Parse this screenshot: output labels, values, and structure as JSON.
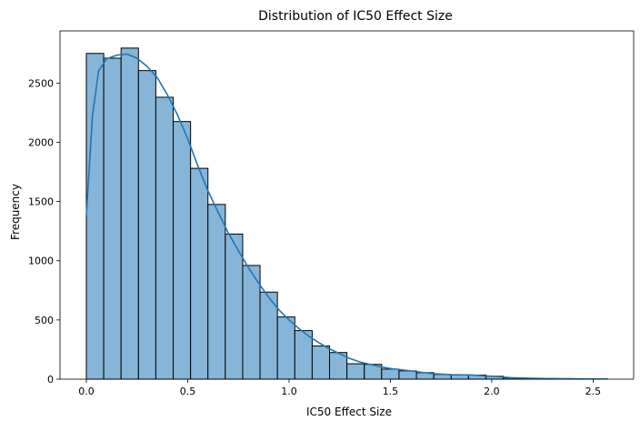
{
  "chart_data": {
    "type": "bar",
    "title": "Distribution of IC50 Effect Size",
    "xlabel": "IC50 Effect Size",
    "ylabel": "Frequency",
    "xlim": [
      -0.13,
      2.7
    ],
    "ylim": [
      0,
      2940
    ],
    "xticks": [
      0.0,
      0.5,
      1.0,
      1.5,
      2.0,
      2.5
    ],
    "xtick_labels": [
      "0.0",
      "0.5",
      "1.0",
      "1.5",
      "2.0",
      "2.5"
    ],
    "yticks": [
      0,
      500,
      1000,
      1500,
      2000,
      2500
    ],
    "ytick_labels": [
      "0",
      "500",
      "1000",
      "1500",
      "2000",
      "2500"
    ],
    "bin_edges": [
      0.0,
      0.0857,
      0.1714,
      0.2571,
      0.3428,
      0.4285,
      0.5142,
      0.5999,
      0.6856,
      0.7713,
      0.857,
      0.9427,
      1.0284,
      1.1141,
      1.1998,
      1.2855,
      1.3712,
      1.4569,
      1.5426,
      1.6283,
      1.714,
      1.7997,
      1.8854,
      1.9711,
      2.0568,
      2.1425,
      2.2282,
      2.3139,
      2.3996,
      2.4853,
      2.571
    ],
    "values": [
      2750,
      2710,
      2795,
      2605,
      2380,
      2175,
      1780,
      1475,
      1225,
      960,
      735,
      525,
      410,
      280,
      225,
      130,
      125,
      85,
      70,
      55,
      40,
      35,
      35,
      25,
      10,
      8,
      5,
      4,
      3,
      2
    ],
    "kde": {
      "x": [
        0.0,
        0.03,
        0.06,
        0.1,
        0.15,
        0.2,
        0.25,
        0.3,
        0.35,
        0.4,
        0.45,
        0.5,
        0.55,
        0.6,
        0.65,
        0.7,
        0.75,
        0.8,
        0.85,
        0.9,
        0.95,
        1.0,
        1.05,
        1.1,
        1.15,
        1.2,
        1.25,
        1.3,
        1.35,
        1.4,
        1.45,
        1.5,
        1.6,
        1.7,
        1.8,
        1.9,
        2.0,
        2.1,
        2.2,
        2.3,
        2.4,
        2.5,
        2.57
      ],
      "y": [
        1380,
        2220,
        2600,
        2705,
        2735,
        2745,
        2710,
        2640,
        2545,
        2400,
        2230,
        2030,
        1800,
        1590,
        1410,
        1235,
        1085,
        940,
        810,
        690,
        585,
        500,
        425,
        360,
        305,
        255,
        215,
        175,
        145,
        125,
        105,
        90,
        70,
        48,
        38,
        35,
        25,
        12,
        7,
        4,
        3,
        2,
        2
      ]
    },
    "bar_color": "#86b5d8",
    "bar_edge_color": "#000000",
    "kde_color": "#1f77b4",
    "grid": false,
    "legend": false
  }
}
